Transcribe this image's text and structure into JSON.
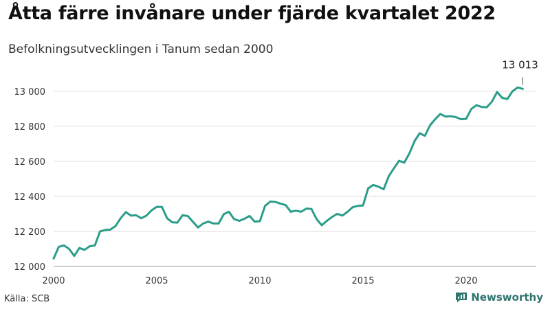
{
  "header": {
    "title": "Åtta färre invånare under fjärde kvartalet 2022",
    "subtitle": "Befolkningsutvecklingen i Tanum sedan 2000"
  },
  "footer": {
    "source": "Källa: SCB",
    "brand": "Newsworthy"
  },
  "colors": {
    "line": "#2a9d8a",
    "grid": "#dddddd",
    "brand": "#2f7570"
  },
  "chart_data": {
    "type": "line",
    "title": "Åtta färre invånare under fjärde kvartalet 2022",
    "subtitle": "Befolkningsutvecklingen i Tanum sedan 2000",
    "xlabel": "",
    "ylabel": "",
    "xlim": [
      2000,
      2023.4
    ],
    "ylim": [
      12000,
      13050
    ],
    "grid": true,
    "x_ticks": [
      2000,
      2005,
      2010,
      2015,
      2020
    ],
    "x_tick_labels": [
      "2000",
      "2005",
      "2010",
      "2015",
      "2020"
    ],
    "y_ticks": [
      12000,
      12200,
      12400,
      12600,
      12800,
      13000
    ],
    "y_tick_labels": [
      "12 000",
      "12 200",
      "12 400",
      "12 600",
      "12 800",
      "13 000"
    ],
    "annotation": {
      "x": 2022.75,
      "y": 13013,
      "label": "13 013"
    },
    "x": [
      2000.0,
      2000.25,
      2000.5,
      2000.75,
      2001.0,
      2001.25,
      2001.5,
      2001.75,
      2002.0,
      2002.25,
      2002.5,
      2002.75,
      2003.0,
      2003.25,
      2003.5,
      2003.75,
      2004.0,
      2004.25,
      2004.5,
      2004.75,
      2005.0,
      2005.25,
      2005.5,
      2005.75,
      2006.0,
      2006.25,
      2006.5,
      2006.75,
      2007.0,
      2007.25,
      2007.5,
      2007.75,
      2008.0,
      2008.25,
      2008.5,
      2008.75,
      2009.0,
      2009.25,
      2009.5,
      2009.75,
      2010.0,
      2010.25,
      2010.5,
      2010.75,
      2011.0,
      2011.25,
      2011.5,
      2011.75,
      2012.0,
      2012.25,
      2012.5,
      2012.75,
      2013.0,
      2013.25,
      2013.5,
      2013.75,
      2014.0,
      2014.25,
      2014.5,
      2014.75,
      2015.0,
      2015.25,
      2015.5,
      2015.75,
      2016.0,
      2016.25,
      2016.5,
      2016.75,
      2017.0,
      2017.25,
      2017.5,
      2017.75,
      2018.0,
      2018.25,
      2018.5,
      2018.75,
      2019.0,
      2019.25,
      2019.5,
      2019.75,
      2020.0,
      2020.25,
      2020.5,
      2020.75,
      2021.0,
      2021.25,
      2021.5,
      2021.75,
      2022.0,
      2022.25,
      2022.5,
      2022.75
    ],
    "series": [
      {
        "values": [
          12045,
          12112,
          12120,
          12100,
          12060,
          12105,
          12095,
          12115,
          12120,
          12200,
          12208,
          12210,
          12230,
          12275,
          12310,
          12290,
          12292,
          12275,
          12290,
          12320,
          12340,
          12340,
          12275,
          12252,
          12250,
          12292,
          12288,
          12255,
          12222,
          12245,
          12256,
          12245,
          12245,
          12298,
          12312,
          12270,
          12260,
          12272,
          12288,
          12255,
          12258,
          12345,
          12370,
          12368,
          12358,
          12350,
          12312,
          12318,
          12312,
          12330,
          12328,
          12270,
          12235,
          12260,
          12282,
          12300,
          12290,
          12312,
          12338,
          12345,
          12348,
          12445,
          12465,
          12455,
          12440,
          12515,
          12560,
          12603,
          12592,
          12645,
          12715,
          12760,
          12745,
          12805,
          12840,
          12870,
          12855,
          12857,
          12852,
          12840,
          12842,
          12898,
          12920,
          12910,
          12908,
          12940,
          12995,
          12962,
          12955,
          13000,
          13021,
          13013
        ]
      }
    ]
  }
}
